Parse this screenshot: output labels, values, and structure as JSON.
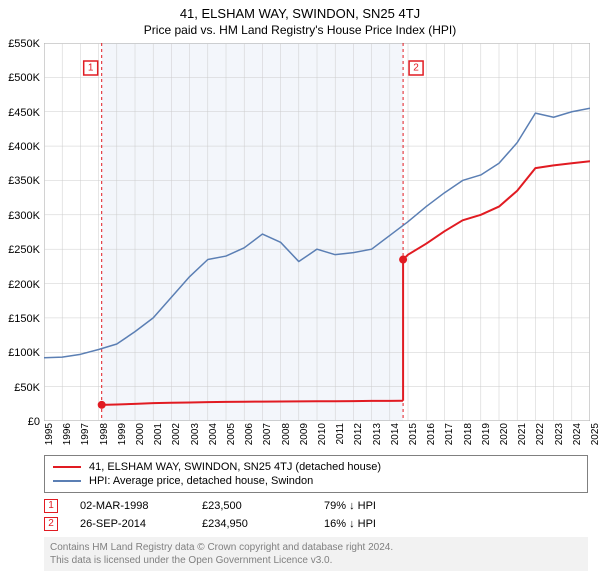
{
  "title": "41, ELSHAM WAY, SWINDON, SN25 4TJ",
  "subtitle": "Price paid vs. HM Land Registry's House Price Index (HPI)",
  "chart": {
    "type": "line",
    "background_color": "#ffffff",
    "grid_color": "#cccccc",
    "shade_color": "#f3f6fb",
    "y": {
      "min": 0,
      "max": 550,
      "step": 50,
      "prefix": "£",
      "suffix": "K"
    },
    "x": {
      "min": 1995,
      "max": 2025,
      "step": 1
    },
    "series": [
      {
        "name": "property",
        "label": "41, ELSHAM WAY, SWINDON, SN25 4TJ (detached house)",
        "color": "#e11b22",
        "width": 2,
        "segments": [
          {
            "points": [
              [
                1998.17,
                23.5
              ],
              [
                1999,
                24
              ],
              [
                2000,
                25
              ],
              [
                2001,
                26
              ],
              [
                2002,
                26.5
              ],
              [
                2003,
                27
              ],
              [
                2004,
                27.5
              ],
              [
                2005,
                27.8
              ],
              [
                2006,
                28
              ],
              [
                2007,
                28.2
              ],
              [
                2008,
                28.4
              ],
              [
                2009,
                28.5
              ],
              [
                2010,
                28.7
              ],
              [
                2011,
                28.8
              ],
              [
                2012,
                29
              ],
              [
                2013,
                29.2
              ],
              [
                2014.0,
                29.3
              ],
              [
                2014.73,
                29.5
              ]
            ]
          },
          {
            "points": [
              [
                2014.73,
                234.95
              ],
              [
                2015,
                242
              ],
              [
                2016,
                258
              ],
              [
                2017,
                276
              ],
              [
                2018,
                292
              ],
              [
                2019,
                300
              ],
              [
                2020,
                312
              ],
              [
                2021,
                335
              ],
              [
                2022,
                368
              ],
              [
                2023,
                372
              ],
              [
                2024,
                375
              ],
              [
                2025,
                378
              ]
            ]
          }
        ]
      },
      {
        "name": "hpi",
        "label": "HPI: Average price, detached house, Swindon",
        "color": "#5b7fb4",
        "width": 1.5,
        "segments": [
          {
            "points": [
              [
                1995,
                92
              ],
              [
                1996,
                93
              ],
              [
                1997,
                97
              ],
              [
                1998,
                104
              ],
              [
                1999,
                112
              ],
              [
                2000,
                130
              ],
              [
                2001,
                150
              ],
              [
                2002,
                180
              ],
              [
                2003,
                210
              ],
              [
                2004,
                235
              ],
              [
                2005,
                240
              ],
              [
                2006,
                252
              ],
              [
                2007,
                272
              ],
              [
                2008,
                260
              ],
              [
                2009,
                232
              ],
              [
                2010,
                250
              ],
              [
                2011,
                242
              ],
              [
                2012,
                245
              ],
              [
                2013,
                250
              ],
              [
                2014,
                270
              ],
              [
                2015,
                290
              ],
              [
                2016,
                312
              ],
              [
                2017,
                332
              ],
              [
                2018,
                350
              ],
              [
                2019,
                358
              ],
              [
                2020,
                375
              ],
              [
                2021,
                405
              ],
              [
                2022,
                448
              ],
              [
                2023,
                442
              ],
              [
                2024,
                450
              ],
              [
                2025,
                455
              ]
            ]
          }
        ]
      }
    ],
    "sale_markers": [
      {
        "n": "1",
        "x": 1998.17,
        "y": 23.5,
        "color": "#e11b22"
      },
      {
        "n": "2",
        "x": 2014.73,
        "y": 234.95,
        "color": "#e11b22"
      }
    ]
  },
  "legend": {
    "items": [
      {
        "color": "#e11b22",
        "label": "41, ELSHAM WAY, SWINDON, SN25 4TJ (detached house)"
      },
      {
        "color": "#5b7fb4",
        "label": "HPI: Average price, detached house, Swindon"
      }
    ]
  },
  "sales": [
    {
      "n": "1",
      "color": "#e11b22",
      "date": "02-MAR-1998",
      "price": "£23,500",
      "delta": "79% ↓ HPI"
    },
    {
      "n": "2",
      "color": "#e11b22",
      "date": "26-SEP-2014",
      "price": "£234,950",
      "delta": "16% ↓ HPI"
    }
  ],
  "footer": {
    "line1": "Contains HM Land Registry data © Crown copyright and database right 2024.",
    "line2": "This data is licensed under the Open Government Licence v3.0."
  }
}
